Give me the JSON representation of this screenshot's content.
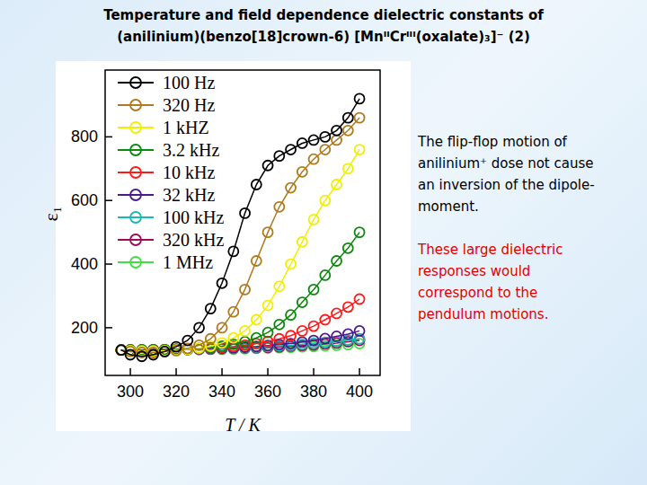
{
  "chart_data": {
    "type": "line",
    "title": [
      "Temperature and field dependence dielectric constants of",
      "(anilinium)(benzo[18]crown-6) [MnᴵᴵCrᴵᴵᴵ(oxalate)₃]⁻ (2)"
    ],
    "x_label": "T / K",
    "y_label": "ε₁",
    "x": [
      296,
      300,
      305,
      310,
      315,
      320,
      325,
      330,
      335,
      340,
      345,
      350,
      355,
      360,
      365,
      370,
      375,
      380,
      385,
      390,
      395,
      400
    ],
    "xlim": [
      289,
      409
    ],
    "xticks": [
      300,
      320,
      340,
      360,
      380,
      400
    ],
    "ylim": [
      50,
      1010
    ],
    "yticks": [
      200,
      400,
      600,
      800
    ],
    "grid": false,
    "legend": "upper-left",
    "marker": "open-circle",
    "line_style": "solid",
    "series": [
      {
        "name": "100 Hz",
        "color": "#000000",
        "values": [
          130,
          115,
          110,
          115,
          125,
          140,
          160,
          200,
          260,
          340,
          440,
          560,
          650,
          710,
          740,
          760,
          780,
          790,
          800,
          820,
          860,
          920
        ]
      },
      {
        "name": "320 Hz",
        "color": "#b07a1e",
        "values": [
          130,
          125,
          122,
          122,
          125,
          128,
          135,
          145,
          165,
          200,
          250,
          320,
          410,
          500,
          580,
          640,
          690,
          730,
          760,
          790,
          820,
          860
        ]
      },
      {
        "name": "1 kHZ",
        "color": "#f2ee00",
        "values": [
          130,
          128,
          127,
          127,
          128,
          130,
          132,
          136,
          142,
          152,
          168,
          190,
          225,
          270,
          330,
          400,
          470,
          540,
          600,
          650,
          700,
          760
        ]
      },
      {
        "name": "3.2 kHz",
        "color": "#0a8a0a",
        "values": [
          130,
          130,
          130,
          130,
          131,
          132,
          133,
          135,
          138,
          142,
          148,
          156,
          168,
          185,
          210,
          240,
          280,
          320,
          365,
          410,
          450,
          500
        ]
      },
      {
        "name": "10 kHz",
        "color": "#ff1a1a",
        "values": [
          130,
          130,
          130,
          130,
          131,
          132,
          133,
          134,
          136,
          138,
          141,
          145,
          150,
          157,
          165,
          175,
          190,
          205,
          225,
          245,
          265,
          290
        ]
      },
      {
        "name": "32 kHz",
        "color": "#4b1a8c",
        "values": [
          130,
          130,
          130,
          131,
          131,
          132,
          133,
          134,
          135,
          136,
          137,
          139,
          141,
          144,
          147,
          150,
          155,
          160,
          166,
          173,
          180,
          190
        ]
      },
      {
        "name": "100 kHz",
        "color": "#1ab8b8",
        "values": [
          130,
          130,
          130,
          130,
          131,
          131,
          132,
          133,
          134,
          135,
          136,
          137,
          139,
          141,
          143,
          145,
          148,
          151,
          154,
          157,
          161,
          165
        ]
      },
      {
        "name": "320 kHz",
        "color": "#9e0a5a",
        "values": [
          130,
          130,
          130,
          130,
          130,
          131,
          131,
          132,
          133,
          134,
          135,
          136,
          137,
          138,
          140,
          142,
          144,
          146,
          149,
          152,
          156,
          160
        ]
      },
      {
        "name": "1 MHz",
        "color": "#3fe03f",
        "values": [
          130,
          130,
          130,
          130,
          130,
          130,
          131,
          131,
          132,
          132,
          133,
          134,
          135,
          136,
          137,
          138,
          140,
          141,
          143,
          145,
          147,
          150
        ]
      }
    ],
    "annotations": [
      {
        "lines": [
          "The flip-flop motion of",
          "anilinium⁺ dose not cause",
          "an inversion of the dipole-",
          "moment."
        ],
        "color": "#000000"
      },
      {
        "lines": [
          "These large dielectric",
          "responses would",
          "correspond to the",
          "pendulum motions."
        ],
        "color": "#e00000"
      }
    ]
  }
}
